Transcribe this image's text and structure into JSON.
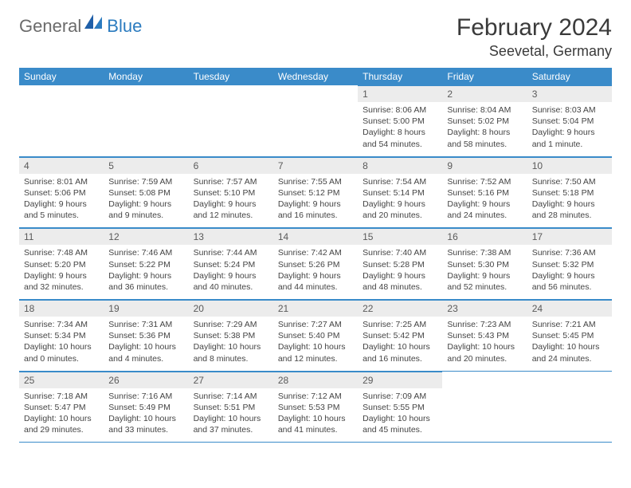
{
  "brand": {
    "text1": "General",
    "text2": "Blue",
    "logo_color": "#1f5fa8"
  },
  "title": {
    "month": "February 2024",
    "location": "Seevetal, Germany"
  },
  "colors": {
    "header_bg": "#3a8bc9",
    "header_fg": "#ffffff",
    "daynum_bg": "#ececec",
    "border": "#3a8bc9"
  },
  "weekdays": [
    "Sunday",
    "Monday",
    "Tuesday",
    "Wednesday",
    "Thursday",
    "Friday",
    "Saturday"
  ],
  "weeks": [
    [
      {
        "n": "",
        "sr": "",
        "ss": "",
        "dl": ""
      },
      {
        "n": "",
        "sr": "",
        "ss": "",
        "dl": ""
      },
      {
        "n": "",
        "sr": "",
        "ss": "",
        "dl": ""
      },
      {
        "n": "",
        "sr": "",
        "ss": "",
        "dl": ""
      },
      {
        "n": "1",
        "sr": "Sunrise: 8:06 AM",
        "ss": "Sunset: 5:00 PM",
        "dl": "Daylight: 8 hours and 54 minutes."
      },
      {
        "n": "2",
        "sr": "Sunrise: 8:04 AM",
        "ss": "Sunset: 5:02 PM",
        "dl": "Daylight: 8 hours and 58 minutes."
      },
      {
        "n": "3",
        "sr": "Sunrise: 8:03 AM",
        "ss": "Sunset: 5:04 PM",
        "dl": "Daylight: 9 hours and 1 minute."
      }
    ],
    [
      {
        "n": "4",
        "sr": "Sunrise: 8:01 AM",
        "ss": "Sunset: 5:06 PM",
        "dl": "Daylight: 9 hours and 5 minutes."
      },
      {
        "n": "5",
        "sr": "Sunrise: 7:59 AM",
        "ss": "Sunset: 5:08 PM",
        "dl": "Daylight: 9 hours and 9 minutes."
      },
      {
        "n": "6",
        "sr": "Sunrise: 7:57 AM",
        "ss": "Sunset: 5:10 PM",
        "dl": "Daylight: 9 hours and 12 minutes."
      },
      {
        "n": "7",
        "sr": "Sunrise: 7:55 AM",
        "ss": "Sunset: 5:12 PM",
        "dl": "Daylight: 9 hours and 16 minutes."
      },
      {
        "n": "8",
        "sr": "Sunrise: 7:54 AM",
        "ss": "Sunset: 5:14 PM",
        "dl": "Daylight: 9 hours and 20 minutes."
      },
      {
        "n": "9",
        "sr": "Sunrise: 7:52 AM",
        "ss": "Sunset: 5:16 PM",
        "dl": "Daylight: 9 hours and 24 minutes."
      },
      {
        "n": "10",
        "sr": "Sunrise: 7:50 AM",
        "ss": "Sunset: 5:18 PM",
        "dl": "Daylight: 9 hours and 28 minutes."
      }
    ],
    [
      {
        "n": "11",
        "sr": "Sunrise: 7:48 AM",
        "ss": "Sunset: 5:20 PM",
        "dl": "Daylight: 9 hours and 32 minutes."
      },
      {
        "n": "12",
        "sr": "Sunrise: 7:46 AM",
        "ss": "Sunset: 5:22 PM",
        "dl": "Daylight: 9 hours and 36 minutes."
      },
      {
        "n": "13",
        "sr": "Sunrise: 7:44 AM",
        "ss": "Sunset: 5:24 PM",
        "dl": "Daylight: 9 hours and 40 minutes."
      },
      {
        "n": "14",
        "sr": "Sunrise: 7:42 AM",
        "ss": "Sunset: 5:26 PM",
        "dl": "Daylight: 9 hours and 44 minutes."
      },
      {
        "n": "15",
        "sr": "Sunrise: 7:40 AM",
        "ss": "Sunset: 5:28 PM",
        "dl": "Daylight: 9 hours and 48 minutes."
      },
      {
        "n": "16",
        "sr": "Sunrise: 7:38 AM",
        "ss": "Sunset: 5:30 PM",
        "dl": "Daylight: 9 hours and 52 minutes."
      },
      {
        "n": "17",
        "sr": "Sunrise: 7:36 AM",
        "ss": "Sunset: 5:32 PM",
        "dl": "Daylight: 9 hours and 56 minutes."
      }
    ],
    [
      {
        "n": "18",
        "sr": "Sunrise: 7:34 AM",
        "ss": "Sunset: 5:34 PM",
        "dl": "Daylight: 10 hours and 0 minutes."
      },
      {
        "n": "19",
        "sr": "Sunrise: 7:31 AM",
        "ss": "Sunset: 5:36 PM",
        "dl": "Daylight: 10 hours and 4 minutes."
      },
      {
        "n": "20",
        "sr": "Sunrise: 7:29 AM",
        "ss": "Sunset: 5:38 PM",
        "dl": "Daylight: 10 hours and 8 minutes."
      },
      {
        "n": "21",
        "sr": "Sunrise: 7:27 AM",
        "ss": "Sunset: 5:40 PM",
        "dl": "Daylight: 10 hours and 12 minutes."
      },
      {
        "n": "22",
        "sr": "Sunrise: 7:25 AM",
        "ss": "Sunset: 5:42 PM",
        "dl": "Daylight: 10 hours and 16 minutes."
      },
      {
        "n": "23",
        "sr": "Sunrise: 7:23 AM",
        "ss": "Sunset: 5:43 PM",
        "dl": "Daylight: 10 hours and 20 minutes."
      },
      {
        "n": "24",
        "sr": "Sunrise: 7:21 AM",
        "ss": "Sunset: 5:45 PM",
        "dl": "Daylight: 10 hours and 24 minutes."
      }
    ],
    [
      {
        "n": "25",
        "sr": "Sunrise: 7:18 AM",
        "ss": "Sunset: 5:47 PM",
        "dl": "Daylight: 10 hours and 29 minutes."
      },
      {
        "n": "26",
        "sr": "Sunrise: 7:16 AM",
        "ss": "Sunset: 5:49 PM",
        "dl": "Daylight: 10 hours and 33 minutes."
      },
      {
        "n": "27",
        "sr": "Sunrise: 7:14 AM",
        "ss": "Sunset: 5:51 PM",
        "dl": "Daylight: 10 hours and 37 minutes."
      },
      {
        "n": "28",
        "sr": "Sunrise: 7:12 AM",
        "ss": "Sunset: 5:53 PM",
        "dl": "Daylight: 10 hours and 41 minutes."
      },
      {
        "n": "29",
        "sr": "Sunrise: 7:09 AM",
        "ss": "Sunset: 5:55 PM",
        "dl": "Daylight: 10 hours and 45 minutes."
      },
      {
        "n": "",
        "sr": "",
        "ss": "",
        "dl": ""
      },
      {
        "n": "",
        "sr": "",
        "ss": "",
        "dl": ""
      }
    ]
  ]
}
